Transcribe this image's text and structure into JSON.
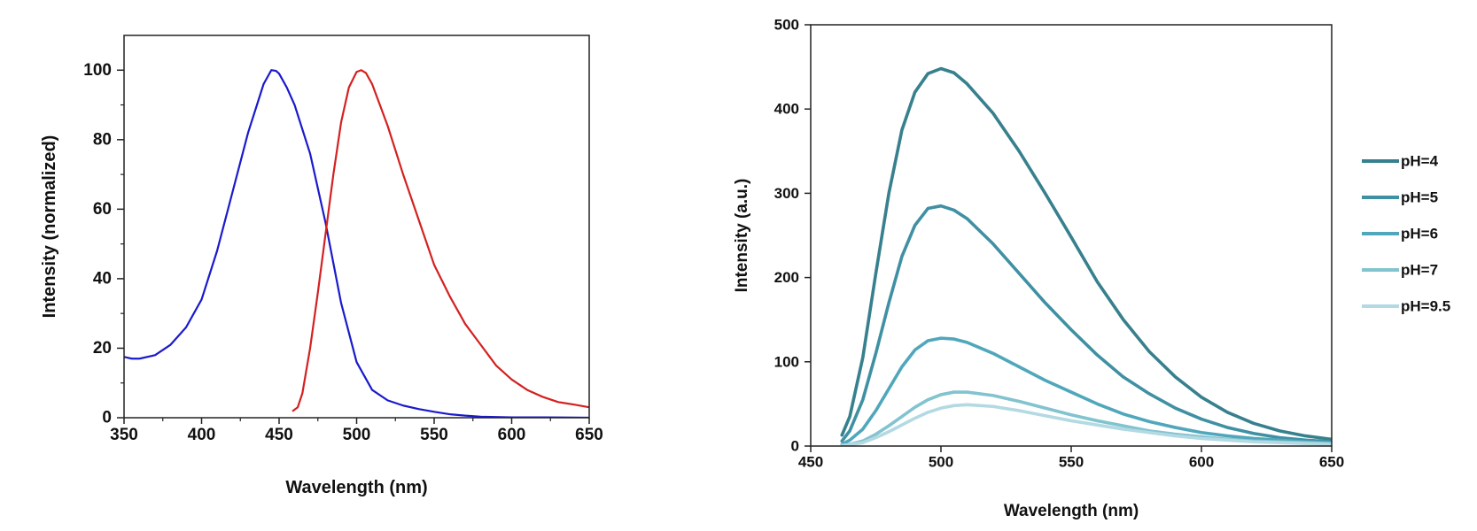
{
  "chart_data": [
    {
      "type": "line",
      "title": "",
      "xlabel": "Wavelength (nm)",
      "ylabel": "Intensity (normalized)",
      "xlim": [
        350,
        650
      ],
      "ylim": [
        0,
        110
      ],
      "xticks": [
        350,
        400,
        450,
        500,
        550,
        600,
        650
      ],
      "yticks": [
        0,
        20,
        40,
        60,
        80,
        100
      ],
      "grid": false,
      "legend": "none",
      "series": [
        {
          "color": "#1a1acc",
          "x": [
            350,
            355,
            360,
            370,
            380,
            390,
            400,
            410,
            420,
            430,
            440,
            445,
            448,
            450,
            455,
            460,
            470,
            480,
            490,
            500,
            510,
            520,
            530,
            540,
            550,
            560,
            570,
            580,
            590,
            600,
            620,
            650
          ],
          "y": [
            17.5,
            17.0,
            17.0,
            18.0,
            21.0,
            26.0,
            34.0,
            48.0,
            65.0,
            82.0,
            96.0,
            100,
            99.8,
            99.0,
            95.0,
            90.0,
            76.0,
            56.0,
            33.0,
            16.0,
            8.0,
            5.0,
            3.5,
            2.5,
            1.7,
            1.0,
            0.6,
            0.3,
            0.2,
            0.1,
            0.1,
            0.0
          ]
        },
        {
          "color": "#d42020",
          "x": [
            459,
            462,
            465,
            470,
            475,
            480,
            485,
            490,
            495,
            500,
            503,
            506,
            510,
            515,
            520,
            525,
            530,
            540,
            550,
            560,
            570,
            580,
            590,
            600,
            610,
            620,
            630,
            640,
            650
          ],
          "y": [
            2.0,
            3.0,
            7.0,
            20.0,
            36.0,
            53.0,
            70.0,
            85.0,
            95.0,
            99.5,
            100,
            99.2,
            96.0,
            90.0,
            84.0,
            77.0,
            70.0,
            57.0,
            44.0,
            35.0,
            27.0,
            21.0,
            15.0,
            11.0,
            8.0,
            6.0,
            4.5,
            3.8,
            3.0
          ]
        }
      ]
    },
    {
      "type": "line",
      "title": "",
      "xlabel": "Wavelength (nm)",
      "ylabel": "Intensity (a.u.)",
      "xlim": [
        450,
        650
      ],
      "ylim": [
        0,
        500
      ],
      "xticks": [
        450,
        500,
        550,
        600,
        650
      ],
      "yticks": [
        0,
        100,
        200,
        300,
        400,
        500
      ],
      "grid": false,
      "legend": "right",
      "x": [
        462,
        465,
        470,
        475,
        480,
        485,
        490,
        495,
        500,
        505,
        510,
        520,
        530,
        540,
        550,
        560,
        570,
        580,
        590,
        600,
        610,
        620,
        630,
        640,
        650
      ],
      "series": [
        {
          "name": "pH=4",
          "color": "#37808d",
          "y": [
            13,
            35,
            105,
            205,
            300,
            375,
            420,
            442,
            448,
            443,
            430,
            395,
            350,
            300,
            248,
            195,
            150,
            112,
            82,
            58,
            40,
            27,
            18,
            12,
            8
          ]
        },
        {
          "name": "pH=5",
          "color": "#4090a3",
          "y": [
            6,
            18,
            55,
            110,
            170,
            225,
            262,
            282,
            285,
            280,
            270,
            240,
            205,
            170,
            138,
            108,
            82,
            62,
            45,
            32,
            22,
            15,
            10,
            7,
            5
          ]
        },
        {
          "name": "pH=6",
          "color": "#50a7bc",
          "y": [
            2,
            7,
            20,
            42,
            68,
            94,
            114,
            125,
            128,
            127,
            123,
            110,
            94,
            78,
            64,
            50,
            38,
            29,
            22,
            16,
            12,
            9,
            7,
            5,
            4
          ]
        },
        {
          "name": "pH=7",
          "color": "#82c3d0",
          "y": [
            1,
            2,
            6,
            14,
            24,
            35,
            46,
            55,
            61,
            64,
            64,
            60,
            53,
            45,
            37,
            30,
            24,
            18,
            14,
            11,
            8,
            6,
            5,
            4,
            3
          ]
        },
        {
          "name": "pH=9.5",
          "color": "#b3d9e2",
          "y": [
            0.5,
            1.5,
            4,
            10,
            17,
            25,
            33,
            40,
            45,
            48,
            49,
            47,
            42,
            36,
            30,
            25,
            20,
            16,
            12,
            9,
            7,
            5,
            4,
            3,
            2
          ]
        }
      ]
    }
  ]
}
